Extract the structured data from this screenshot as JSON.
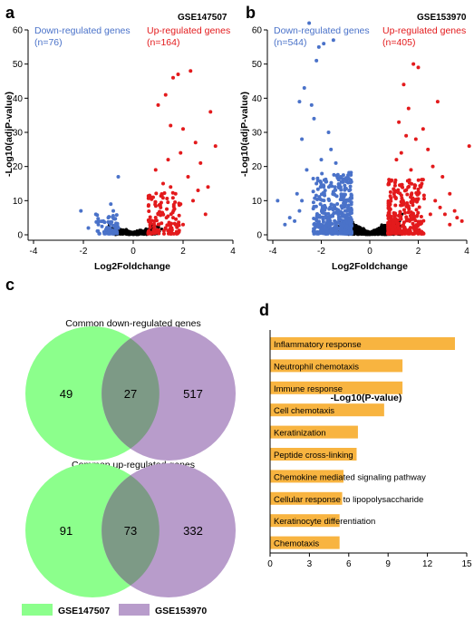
{
  "panels": {
    "a": "a",
    "b": "b",
    "c": "c",
    "d": "d"
  },
  "colors": {
    "down": "#4a72c9",
    "up": "#e31a1c",
    "ns": "#000000",
    "green": "#8cff8c",
    "purple": "#b89ccb",
    "overlap": "#7d9a86",
    "bar": "#f8b440"
  },
  "chart_data": [
    {
      "type": "scatter",
      "dataset": "GSE147507",
      "xlabel": "Log2Foldchange",
      "ylabel": "-Log10(adjP-value)",
      "xlim": [
        -4,
        4
      ],
      "ylim": [
        0,
        60
      ],
      "xticks": [
        -4,
        -2,
        0,
        2,
        4
      ],
      "yticks": [
        0,
        10,
        20,
        30,
        40,
        50,
        60
      ],
      "down_label": "Down-regulated genes",
      "down_count": "(n=76)",
      "up_label": "Up-regulated genes",
      "up_count": "(n=164)",
      "highlight_up": [
        [
          1.6,
          46
        ],
        [
          1.8,
          47
        ],
        [
          2.3,
          48
        ],
        [
          3.1,
          36
        ],
        [
          3.3,
          26
        ],
        [
          1.3,
          41
        ],
        [
          1.0,
          38
        ],
        [
          1.5,
          32
        ],
        [
          2.0,
          31
        ],
        [
          1.9,
          24
        ],
        [
          2.5,
          27
        ],
        [
          1.4,
          22
        ],
        [
          0.9,
          19
        ],
        [
          2.7,
          21
        ],
        [
          1.2,
          15
        ],
        [
          2.2,
          17
        ],
        [
          3.0,
          14
        ],
        [
          1.7,
          12
        ],
        [
          0.8,
          11
        ],
        [
          2.4,
          10
        ],
        [
          1.1,
          8
        ],
        [
          2.9,
          6
        ],
        [
          1.6,
          5
        ],
        [
          2.0,
          3
        ],
        [
          0.7,
          4
        ],
        [
          1.3,
          2
        ],
        [
          2.6,
          13
        ],
        [
          1.9,
          9
        ],
        [
          1.0,
          6
        ],
        [
          1.5,
          14
        ]
      ],
      "highlight_down": [
        [
          -2.1,
          7
        ],
        [
          -0.6,
          17
        ],
        [
          -1.5,
          6
        ],
        [
          -0.9,
          9
        ],
        [
          -1.2,
          4
        ],
        [
          -0.7,
          3
        ],
        [
          -1.8,
          2
        ],
        [
          -1.0,
          5
        ],
        [
          -0.8,
          7
        ],
        [
          -1.4,
          3
        ],
        [
          -0.6,
          2
        ],
        [
          -1.1,
          1.5
        ]
      ]
    },
    {
      "type": "scatter",
      "dataset": "GSE153970",
      "xlabel": "Log2Foldchange",
      "ylabel": "-Log10(adjP-value)",
      "xlim": [
        -4,
        4
      ],
      "ylim": [
        0,
        60
      ],
      "xticks": [
        -4,
        -2,
        0,
        2,
        4
      ],
      "yticks": [
        0,
        10,
        20,
        30,
        40,
        50,
        60
      ],
      "down_label": "Down-regulated genes",
      "down_count": "(n=544)",
      "up_label": "Up-regulated genes",
      "up_count": "(n=405)",
      "highlight_up": [
        [
          1.8,
          50
        ],
        [
          2.0,
          49
        ],
        [
          1.4,
          44
        ],
        [
          2.8,
          39
        ],
        [
          4.1,
          26
        ],
        [
          1.6,
          37
        ],
        [
          1.2,
          33
        ],
        [
          2.2,
          31
        ],
        [
          1.5,
          29
        ],
        [
          1.9,
          28
        ],
        [
          2.4,
          25
        ],
        [
          1.3,
          24
        ],
        [
          1.1,
          22
        ],
        [
          2.6,
          20
        ],
        [
          3.0,
          17
        ],
        [
          1.7,
          19
        ],
        [
          0.9,
          16
        ],
        [
          2.1,
          14
        ],
        [
          3.3,
          12
        ],
        [
          1.0,
          12
        ],
        [
          2.9,
          8
        ],
        [
          3.6,
          5
        ],
        [
          2.5,
          6
        ],
        [
          1.4,
          9
        ],
        [
          3.1,
          6
        ],
        [
          3.8,
          4
        ],
        [
          3.5,
          7
        ],
        [
          3.3,
          3
        ],
        [
          2.7,
          10
        ],
        [
          0.8,
          8
        ]
      ],
      "highlight_down": [
        [
          -2.5,
          62
        ],
        [
          -2.1,
          55
        ],
        [
          -1.9,
          56
        ],
        [
          -1.5,
          57
        ],
        [
          -2.2,
          51
        ],
        [
          -2.7,
          43
        ],
        [
          -2.9,
          39
        ],
        [
          -2.4,
          38
        ],
        [
          -2.3,
          34
        ],
        [
          -1.7,
          30
        ],
        [
          -2.8,
          28
        ],
        [
          -1.6,
          25
        ],
        [
          -2.0,
          22
        ],
        [
          -1.4,
          21
        ],
        [
          -2.6,
          19
        ],
        [
          -1.2,
          17
        ],
        [
          -2.2,
          15
        ],
        [
          -1.9,
          14
        ],
        [
          -3.8,
          10
        ],
        [
          -3.3,
          5
        ],
        [
          -3.1,
          4
        ],
        [
          -2.9,
          7
        ],
        [
          -3.5,
          3
        ],
        [
          -2.8,
          10
        ],
        [
          -1.1,
          11
        ],
        [
          -0.9,
          8
        ],
        [
          -3.0,
          12
        ],
        [
          -1.3,
          6
        ]
      ]
    },
    {
      "type": "venn",
      "sets": [
        {
          "title": "Common down-regulated genes",
          "left_only": "49",
          "overlap": "27",
          "right_only": "517"
        },
        {
          "title": "Common up-regulated genes",
          "left_only": "91",
          "overlap": "73",
          "right_only": "332"
        }
      ],
      "legend": [
        "GSE147507",
        "GSE153970"
      ]
    },
    {
      "type": "bar",
      "orientation": "horizontal",
      "xlabel": "-Log10(P-value)",
      "xlim": [
        0,
        15
      ],
      "xticks": [
        0,
        3,
        6,
        9,
        12,
        15
      ],
      "categories": [
        "Inflammatory response",
        "Neutrophil chemotaxis",
        "Immune response",
        "Cell chemotaxis",
        "Keratinization",
        "Peptide cross-linking",
        "Chemokine mediated signaling pathway",
        "Cellular response to lipopolysaccharide",
        "Keratinocyte differentiation",
        "Chemotaxis"
      ],
      "values": [
        14.1,
        10.1,
        10.1,
        8.7,
        6.7,
        6.6,
        5.6,
        5.5,
        5.3,
        5.3
      ]
    }
  ]
}
